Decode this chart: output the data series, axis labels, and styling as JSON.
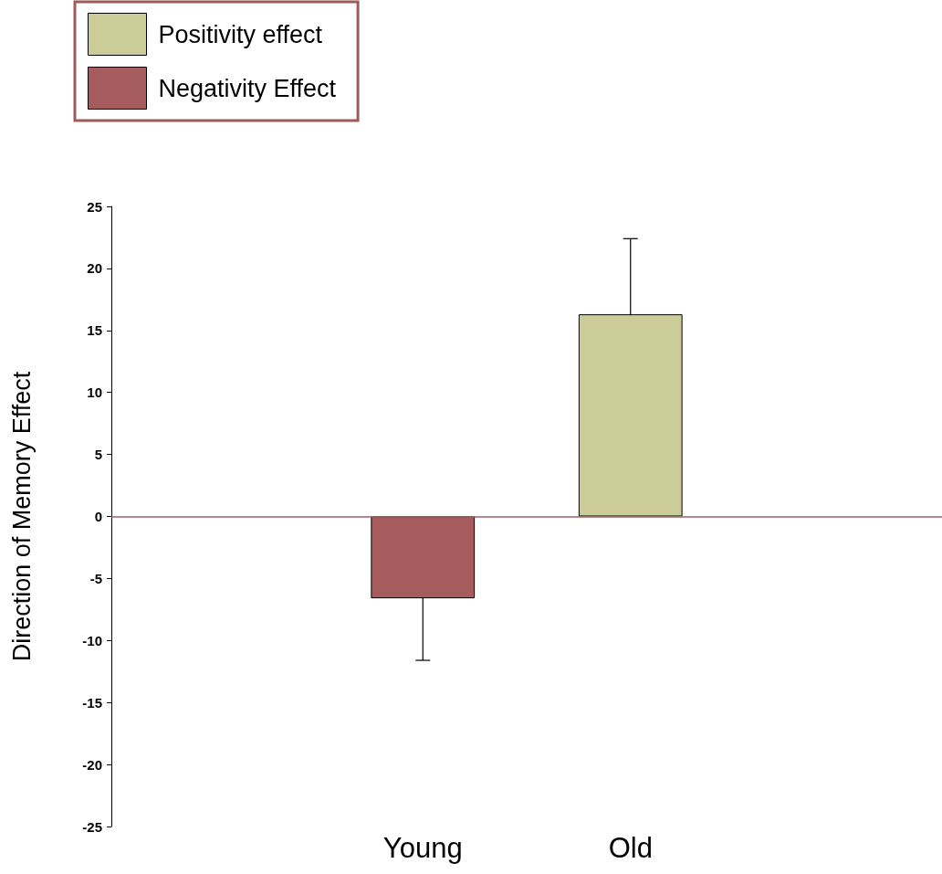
{
  "chart_data": {
    "type": "bar",
    "ylabel": "Direction of Memory Effect",
    "categories": [
      null,
      "Young",
      "Old",
      null
    ],
    "series": [
      {
        "name": "Positivity effect",
        "color": "#cccc99",
        "values": [
          null,
          null,
          16.3,
          null
        ],
        "errors": [
          null,
          null,
          6.1,
          null
        ]
      },
      {
        "name": "Negativity Effect",
        "color": "#a65c5c",
        "values": [
          null,
          -6.6,
          null,
          null
        ],
        "errors": [
          null,
          5,
          null,
          null
        ]
      }
    ],
    "ylim": [
      -25,
      25
    ],
    "yticks": [
      -25,
      -20,
      -15,
      -10,
      -5,
      0,
      5,
      10,
      15,
      20,
      25
    ],
    "ref_lines": [
      {
        "axis": "y",
        "value": 0,
        "color": "#a06060"
      }
    ],
    "grid": false,
    "legend": "top left"
  }
}
